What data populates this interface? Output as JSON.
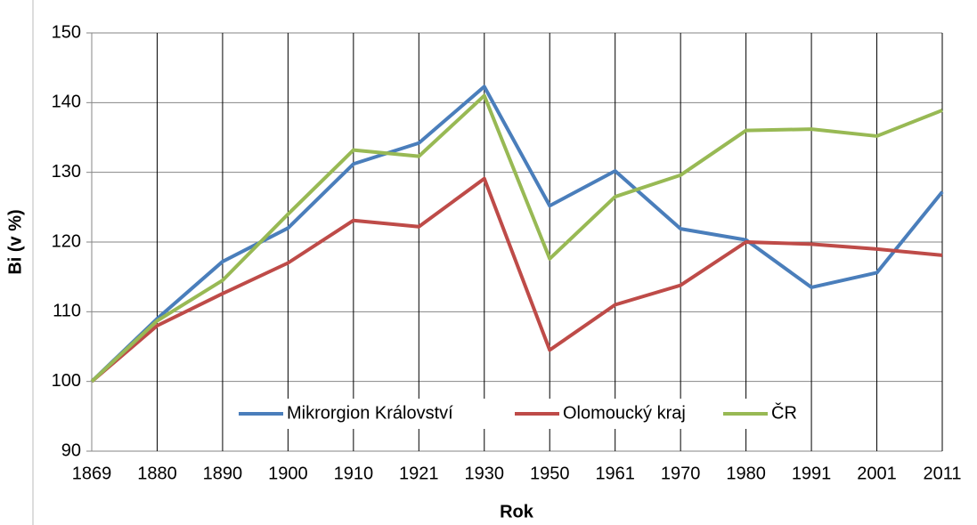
{
  "chart_data": {
    "type": "line",
    "x_label": "Rok",
    "y_label": "Bi (v %)",
    "categories": [
      "1869",
      "1880",
      "1890",
      "1900",
      "1910",
      "1921",
      "1930",
      "1950",
      "1961",
      "1970",
      "1980",
      "1991",
      "2001",
      "2011"
    ],
    "series": [
      {
        "name": "Mikrorgion Království",
        "color": "#4a7ebb",
        "values": [
          100,
          109,
          117.2,
          122,
          131.2,
          134.2,
          142.3,
          125.2,
          130.2,
          121.9,
          120.3,
          113.5,
          115.6,
          127.2
        ]
      },
      {
        "name": "Olomoucký kraj",
        "color": "#be4b48",
        "values": [
          100,
          108,
          112.6,
          117,
          123.1,
          122.2,
          129.1,
          104.5,
          111,
          113.8,
          120,
          119.7,
          119,
          118.1
        ]
      },
      {
        "name": "ČR",
        "color": "#98b954",
        "values": [
          100,
          108.7,
          114.5,
          124,
          133.2,
          132.3,
          141,
          117.6,
          126.5,
          129.6,
          136,
          136.2,
          135.2,
          138.9
        ]
      }
    ],
    "ylim": [
      90,
      150
    ],
    "yticks": [
      90,
      100,
      110,
      120,
      130,
      140,
      150
    ],
    "grid": true,
    "legend": "bottom"
  }
}
